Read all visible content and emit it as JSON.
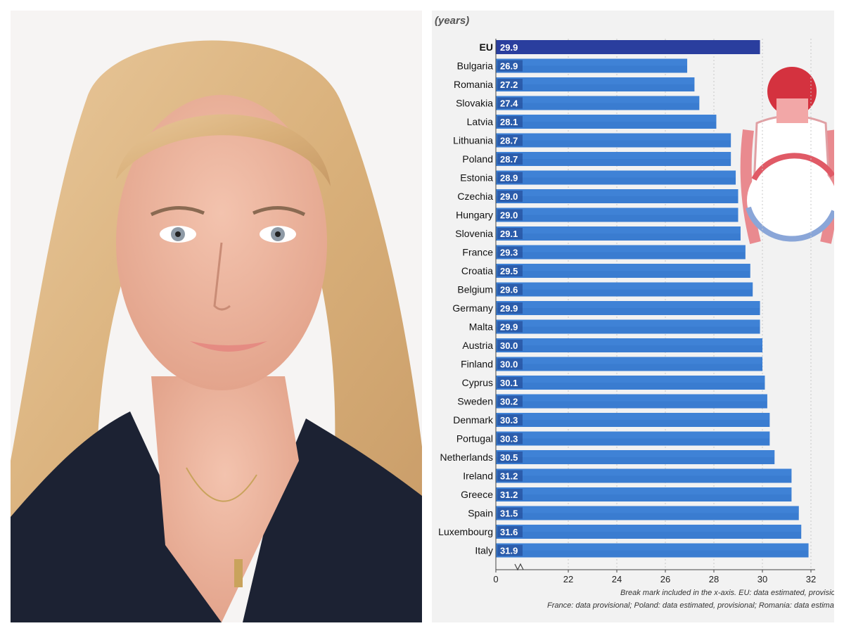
{
  "chart_data": {
    "type": "bar",
    "orientation": "horizontal",
    "unit_label": "(years)",
    "categories": [
      "EU",
      "Bulgaria",
      "Romania",
      "Slovakia",
      "Latvia",
      "Lithuania",
      "Poland",
      "Estonia",
      "Czechia",
      "Hungary",
      "Slovenia",
      "France",
      "Croatia",
      "Belgium",
      "Germany",
      "Malta",
      "Austria",
      "Finland",
      "Cyprus",
      "Sweden",
      "Denmark",
      "Portugal",
      "Netherlands",
      "Ireland",
      "Greece",
      "Spain",
      "Luxembourg",
      "Italy"
    ],
    "values": [
      29.9,
      26.9,
      27.2,
      27.4,
      28.1,
      28.7,
      28.7,
      28.9,
      29.0,
      29.0,
      29.1,
      29.3,
      29.5,
      29.6,
      29.9,
      29.9,
      30.0,
      30.0,
      30.1,
      30.2,
      30.3,
      30.3,
      30.5,
      31.2,
      31.2,
      31.5,
      31.6,
      31.9
    ],
    "value_labels": [
      "29.9",
      "26.9",
      "27.2",
      "27.4",
      "28.1",
      "28.7",
      "28.7",
      "28.9",
      "29.0",
      "29.0",
      "29.1",
      "29.3",
      "29.5",
      "29.6",
      "29.9",
      "29.9",
      "30.0",
      "30.0",
      "30.1",
      "30.2",
      "30.3",
      "30.3",
      "30.5",
      "31.2",
      "31.2",
      "31.5",
      "31.6",
      "31.9"
    ],
    "highlight_category": "EU",
    "x_ticks": [
      0,
      22,
      24,
      26,
      28,
      30,
      32
    ],
    "x_break": true,
    "xlim": [
      20,
      33
    ],
    "grid": "vertical dashed",
    "colors": {
      "eu_bar": "#2a3e9e",
      "bar": "#3a7cd0",
      "bar_light": "#4a90e2",
      "label_bg": "#1d3f8a"
    },
    "footnote_lines": [
      "Break mark included in the x-axis. EU: data estimated, provisional",
      "France: data provisional; Poland: data estimated, provisional; Romania: data estimated"
    ]
  }
}
